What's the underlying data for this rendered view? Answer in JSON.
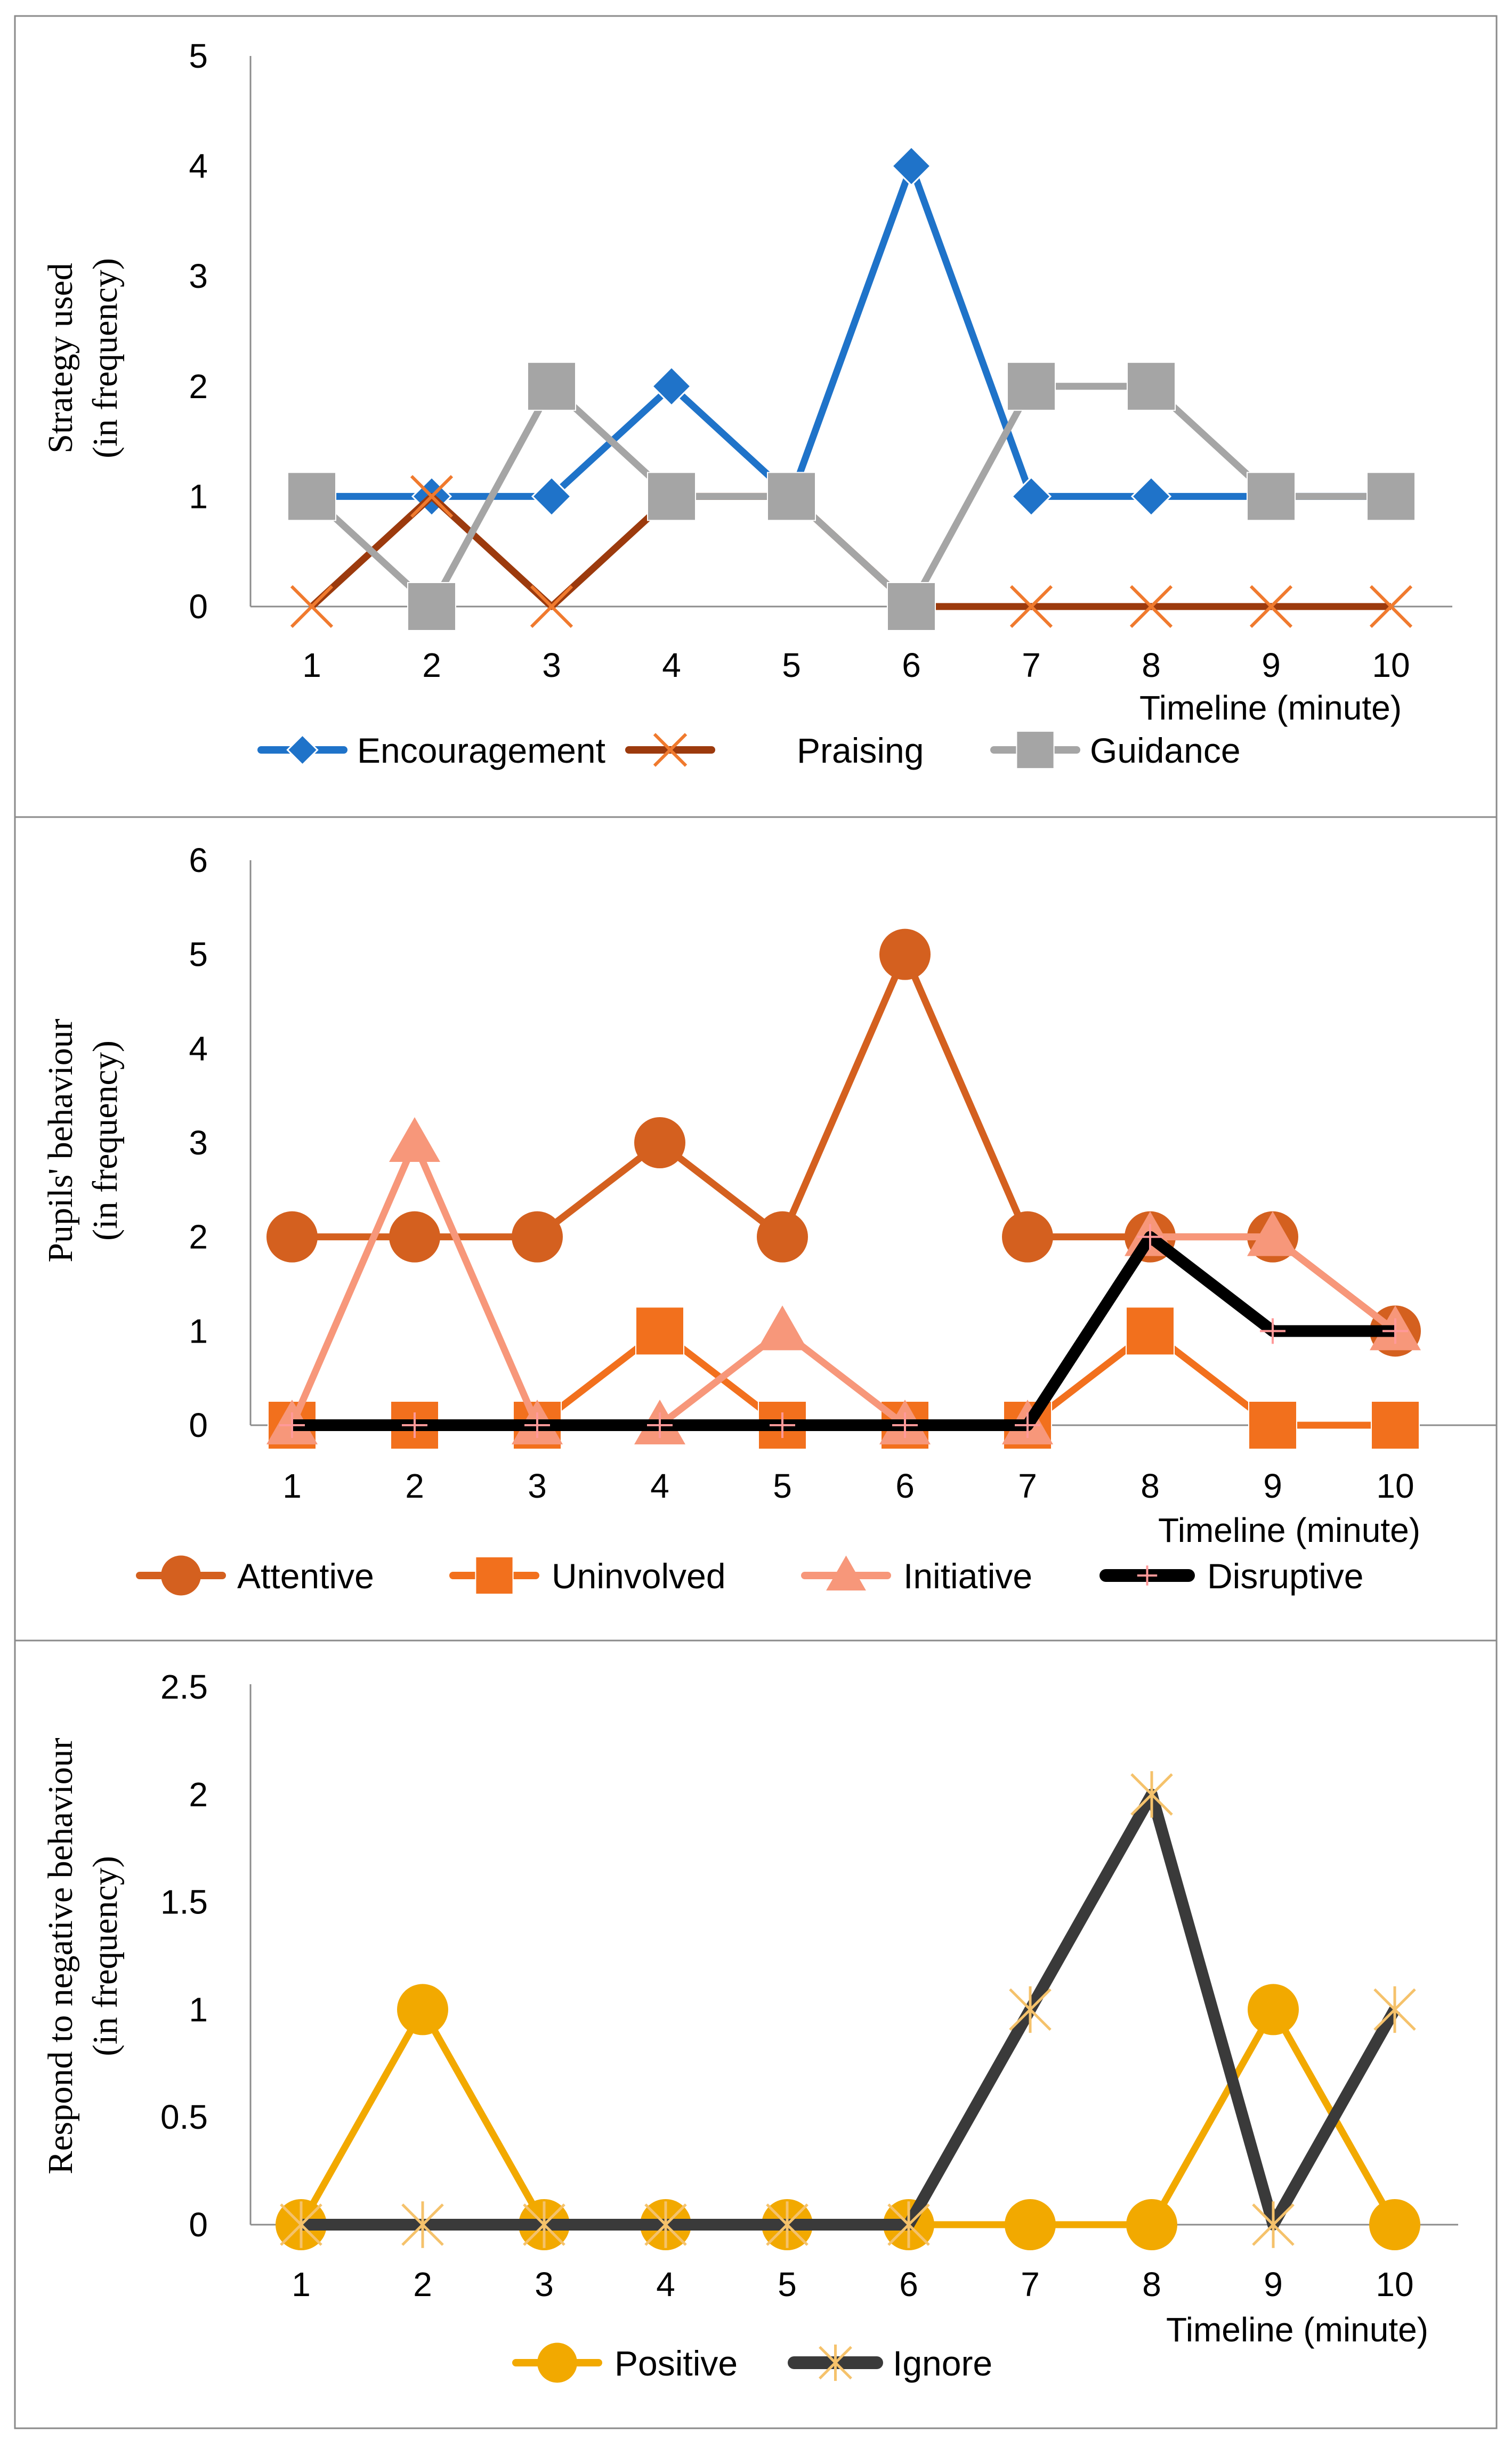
{
  "chart_data": [
    {
      "type": "line",
      "id": "strategy",
      "categories": [
        "1",
        "2",
        "3",
        "4",
        "5",
        "6",
        "7",
        "8",
        "9",
        "10"
      ],
      "ylabel_lines": [
        "Strategy used",
        "(in frequency)"
      ],
      "xlabel": "Timeline (minute)",
      "ylim": [
        0,
        5
      ],
      "yticks": [
        "0",
        "1",
        "2",
        "3",
        "4",
        "5"
      ],
      "series": [
        {
          "name": "Encouragement",
          "values": [
            1,
            1,
            1,
            2,
            1,
            4,
            1,
            1,
            1,
            1
          ],
          "color": "#1f73c9",
          "marker": "diamond"
        },
        {
          "name": "Praising",
          "values": [
            0,
            1,
            0,
            1,
            1,
            0,
            0,
            0,
            0,
            0
          ],
          "color": "#9c3a0d",
          "marker": "x"
        },
        {
          "name": "Guidance",
          "values": [
            1,
            0,
            2,
            1,
            1,
            0,
            2,
            2,
            1,
            1
          ],
          "color": "#a5a5a5",
          "marker": "square"
        }
      ]
    },
    {
      "type": "line",
      "id": "behaviour",
      "categories": [
        "1",
        "2",
        "3",
        "4",
        "5",
        "6",
        "7",
        "8",
        "9",
        "10"
      ],
      "ylabel_lines": [
        "Pupils' behaviour",
        "(in frequency)"
      ],
      "xlabel": "Timeline (minute)",
      "ylim": [
        0,
        6
      ],
      "yticks": [
        "0",
        "1",
        "2",
        "3",
        "4",
        "5",
        "6"
      ],
      "series": [
        {
          "name": "Attentive",
          "values": [
            2,
            2,
            2,
            3,
            2,
            5,
            2,
            2,
            2,
            1
          ],
          "color": "#d4601f",
          "marker": "circle"
        },
        {
          "name": "Uninvolved",
          "values": [
            0,
            0,
            0,
            1,
            0,
            0,
            0,
            1,
            0,
            0
          ],
          "color": "#f2701d",
          "marker": "square"
        },
        {
          "name": "Initiative",
          "values": [
            0,
            3,
            0,
            0,
            1,
            0,
            0,
            2,
            2,
            1
          ],
          "color": "#f7977a",
          "marker": "triangle"
        },
        {
          "name": "Disruptive",
          "values": [
            0,
            0,
            0,
            0,
            0,
            0,
            0,
            2,
            1,
            1
          ],
          "color": "#000000",
          "marker": "plus"
        }
      ]
    },
    {
      "type": "line",
      "id": "response",
      "categories": [
        "1",
        "2",
        "3",
        "4",
        "5",
        "6",
        "7",
        "8",
        "9",
        "10"
      ],
      "ylabel_lines": [
        "Respond to negative behaviour",
        "(in frequency)"
      ],
      "xlabel": "Timeline (minute)",
      "ylim": [
        0,
        2.5
      ],
      "yticks": [
        "0",
        "0.5",
        "1",
        "1.5",
        "2",
        "2.5"
      ],
      "series": [
        {
          "name": "Positive",
          "values": [
            0,
            1,
            0,
            0,
            0,
            0,
            0,
            0,
            1,
            0
          ],
          "color": "#f2a900",
          "marker": "circle"
        },
        {
          "name": "Ignore",
          "values": [
            0,
            0,
            0,
            0,
            0,
            0,
            1,
            2,
            0,
            1
          ],
          "color": "#3a3a3a",
          "marker": "star"
        }
      ]
    }
  ]
}
